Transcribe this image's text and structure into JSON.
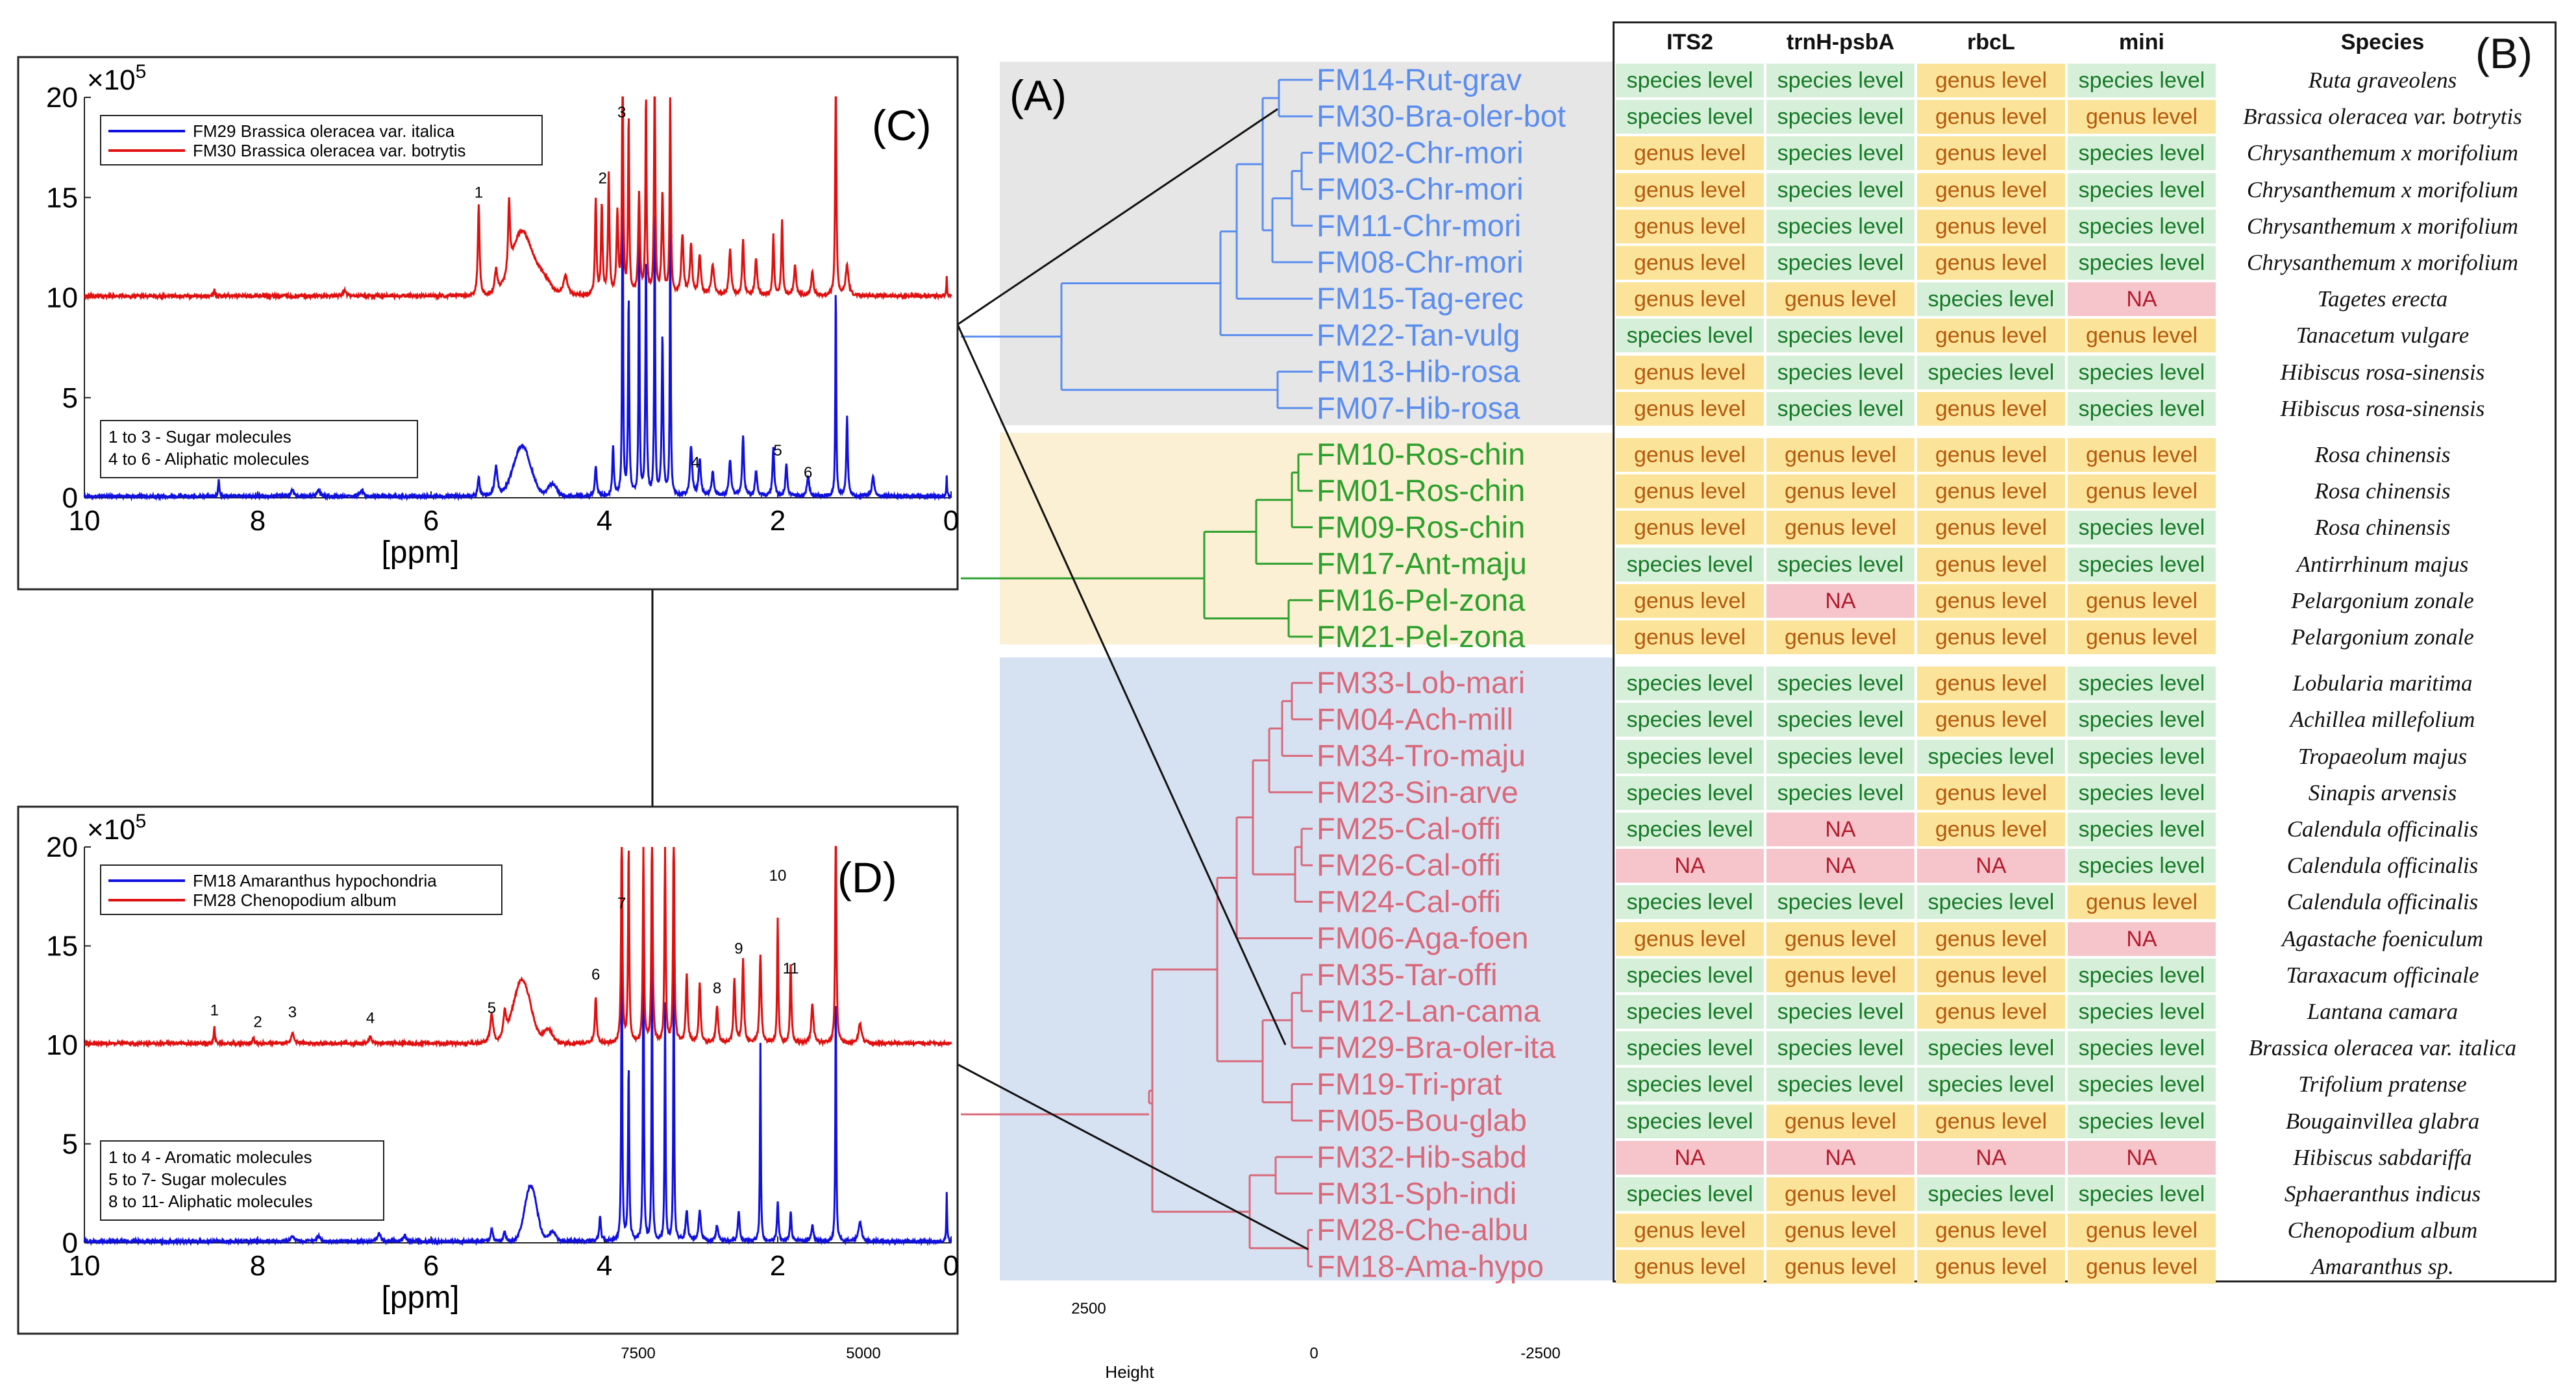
{
  "panel_labels": {
    "a": "(A)",
    "b": "(B)",
    "c": "(C)",
    "d": "(D)"
  },
  "colors": {
    "blue_spectrum": "#1010e0",
    "red_spectrum": "#e01010",
    "cluster_blue": "#5b8def",
    "cluster_green": "#2ca02c",
    "cluster_pink": "#d9697a",
    "bg_gray": "#e6e6e6",
    "bg_yellow": "#fbf0d3",
    "bg_blue": "#d6e2f2"
  },
  "dendrogram": {
    "x_axis_label": "Height",
    "x_ticks": [
      "7500",
      "5000",
      "2500",
      "0",
      "-2500"
    ],
    "clusters": [
      {
        "color": "blue",
        "leaves": [
          "FM14-Rut-grav",
          "FM30-Bra-oler-bot",
          "FM02-Chr-mori",
          "FM03-Chr-mori",
          "FM11-Chr-mori",
          "FM08-Chr-mori",
          "FM15-Tag-erec",
          "FM22-Tan-vulg",
          "FM13-Hib-rosa",
          "FM07-Hib-rosa"
        ]
      },
      {
        "color": "green",
        "leaves": [
          "FM10-Ros-chin",
          "FM01-Ros-chin",
          "FM09-Ros-chin",
          "FM17-Ant-maju",
          "FM16-Pel-zona",
          "FM21-Pel-zona"
        ]
      },
      {
        "color": "pink",
        "leaves": [
          "FM33-Lob-mari",
          "FM04-Ach-mill",
          "FM34-Tro-maju",
          "FM23-Sin-arve",
          "FM25-Cal-offi",
          "FM26-Cal-offi",
          "FM24-Cal-offi",
          "FM06-Aga-foen",
          "FM35-Tar-offi",
          "FM12-Lan-cama",
          "FM29-Bra-oler-ita",
          "FM19-Tri-prat",
          "FM05-Bou-glab",
          "FM32-Hib-sabd",
          "FM31-Sph-indi",
          "FM28-Che-albu",
          "FM18-Ama-hypo"
        ]
      }
    ]
  },
  "table": {
    "headers": [
      "ITS2",
      "trnH-psbA",
      "rbcL",
      "mini",
      "Species"
    ],
    "groups": [
      [
        [
          "species level",
          "species level",
          "genus level",
          "species level",
          "Ruta graveolens"
        ],
        [
          "species level",
          "species level",
          "genus level",
          "genus level",
          "Brassica oleracea var. botrytis"
        ],
        [
          "genus level",
          "species level",
          "genus level",
          "species level",
          "Chrysanthemum x morifolium"
        ],
        [
          "genus level",
          "species level",
          "genus level",
          "species level",
          "Chrysanthemum x morifolium"
        ],
        [
          "genus level",
          "species level",
          "genus level",
          "species level",
          "Chrysanthemum x morifolium"
        ],
        [
          "genus level",
          "species level",
          "genus level",
          "species level",
          "Chrysanthemum x morifolium"
        ],
        [
          "genus level",
          "genus level",
          "species level",
          "NA",
          "Tagetes erecta"
        ],
        [
          "species level",
          "species level",
          "genus level",
          "genus level",
          "Tanacetum vulgare"
        ],
        [
          "genus level",
          "species level",
          "species level",
          "species level",
          "Hibiscus rosa-sinensis"
        ],
        [
          "genus level",
          "species level",
          "genus level",
          "species level",
          "Hibiscus rosa-sinensis"
        ]
      ],
      [
        [
          "genus level",
          "genus level",
          "genus level",
          "genus level",
          "Rosa chinensis"
        ],
        [
          "genus level",
          "genus level",
          "genus level",
          "genus level",
          "Rosa chinensis"
        ],
        [
          "genus level",
          "genus level",
          "genus level",
          "species level",
          "Rosa chinensis"
        ],
        [
          "species level",
          "species level",
          "genus level",
          "species level",
          "Antirrhinum majus"
        ],
        [
          "genus level",
          "NA",
          "genus level",
          "genus level",
          "Pelargonium zonale"
        ],
        [
          "genus level",
          "genus level",
          "genus level",
          "genus level",
          "Pelargonium zonale"
        ]
      ],
      [
        [
          "species level",
          "species level",
          "genus level",
          "species level",
          "Lobularia maritima"
        ],
        [
          "species level",
          "species level",
          "genus level",
          "species level",
          "Achillea millefolium"
        ],
        [
          "species level",
          "species level",
          "species level",
          "species level",
          "Tropaeolum majus"
        ],
        [
          "species level",
          "species level",
          "genus level",
          "species level",
          "Sinapis arvensis"
        ],
        [
          "species level",
          "NA",
          "genus level",
          "species level",
          "Calendula officinalis"
        ],
        [
          "NA",
          "NA",
          "NA",
          "species level",
          "Calendula officinalis"
        ],
        [
          "species level",
          "species level",
          "species level",
          "genus level",
          "Calendula officinalis"
        ],
        [
          "genus level",
          "genus level",
          "genus level",
          "NA",
          "Agastache foeniculum"
        ],
        [
          "species level",
          "genus level",
          "genus level",
          "species level",
          "Taraxacum officinale"
        ],
        [
          "species level",
          "species level",
          "genus level",
          "species level",
          "Lantana camara"
        ],
        [
          "species level",
          "species level",
          "species level",
          "species level",
          "Brassica oleracea var. italica"
        ],
        [
          "species level",
          "species level",
          "species level",
          "species level",
          "Trifolium pratense"
        ],
        [
          "species level",
          "genus level",
          "genus level",
          "species level",
          "Bougainvillea glabra"
        ],
        [
          "NA",
          "NA",
          "NA",
          "NA",
          "Hibiscus sabdariffa"
        ],
        [
          "species level",
          "genus level",
          "species level",
          "species level",
          "Sphaeranthus indicus"
        ],
        [
          "genus level",
          "genus level",
          "genus level",
          "genus level",
          "Chenopodium album"
        ],
        [
          "genus level",
          "genus level",
          "genus level",
          "genus level",
          "Amaranthus sp."
        ]
      ]
    ]
  },
  "chart_data": [
    {
      "type": "line",
      "panel": "(C)",
      "xlabel": "[ppm]",
      "ylabel": "",
      "y_exponent": "×10^5",
      "xlim": [
        10,
        0
      ],
      "ylim": [
        0,
        20
      ],
      "x_ticks": [
        "10",
        "8",
        "6",
        "4",
        "2",
        "0"
      ],
      "y_ticks": [
        "0",
        "5",
        "10",
        "15",
        "20"
      ],
      "series": [
        {
          "name": "FM29 Brassica oleracea var. italica",
          "offset": 0
        },
        {
          "name": "FM30 Brassica oleracea var. botrytis",
          "offset": 10
        }
      ],
      "peak_labels": [
        {
          "text": "1",
          "x": 5.45,
          "y": 15.0
        },
        {
          "text": "2",
          "x": 4.02,
          "y": 15.7
        },
        {
          "text": "3",
          "x": 3.8,
          "y": 19.0
        },
        {
          "text": "4",
          "x": 2.95,
          "y": 1.5
        },
        {
          "text": "5",
          "x": 2.0,
          "y": 2.1
        },
        {
          "text": "6",
          "x": 1.65,
          "y": 1.0
        }
      ],
      "note_lines": [
        "1 to 3 - Sugar molecules",
        "4 to 6 - Aliphatic molecules"
      ]
    },
    {
      "type": "line",
      "panel": "(D)",
      "xlabel": "[ppm]",
      "ylabel": "",
      "y_exponent": "×10^5",
      "xlim": [
        10,
        0
      ],
      "ylim": [
        0,
        20
      ],
      "x_ticks": [
        "10",
        "8",
        "6",
        "4",
        "2",
        "0"
      ],
      "y_ticks": [
        "0",
        "5",
        "10",
        "15",
        "20"
      ],
      "series": [
        {
          "name": "FM18 Amaranthus hypochondria",
          "offset": 0
        },
        {
          "name": "FM28 Chenopodium album",
          "offset": 10
        }
      ],
      "peak_labels": [
        {
          "text": "1",
          "x": 8.5,
          "y": 11.5
        },
        {
          "text": "2",
          "x": 8.0,
          "y": 10.9
        },
        {
          "text": "3",
          "x": 7.6,
          "y": 11.4
        },
        {
          "text": "4",
          "x": 6.7,
          "y": 11.1
        },
        {
          "text": "5",
          "x": 5.3,
          "y": 11.6
        },
        {
          "text": "6",
          "x": 4.1,
          "y": 13.3
        },
        {
          "text": "7",
          "x": 3.8,
          "y": 16.9
        },
        {
          "text": "8",
          "x": 2.7,
          "y": 12.6
        },
        {
          "text": "9",
          "x": 2.45,
          "y": 14.6
        },
        {
          "text": "10",
          "x": 2.0,
          "y": 18.3
        },
        {
          "text": "11",
          "x": 1.85,
          "y": 13.6
        }
      ],
      "note_lines": [
        "1 to 4 - Aromatic molecules",
        "5 to 7- Sugar molecules",
        "8 to 11- Aliphatic molecules"
      ]
    }
  ]
}
